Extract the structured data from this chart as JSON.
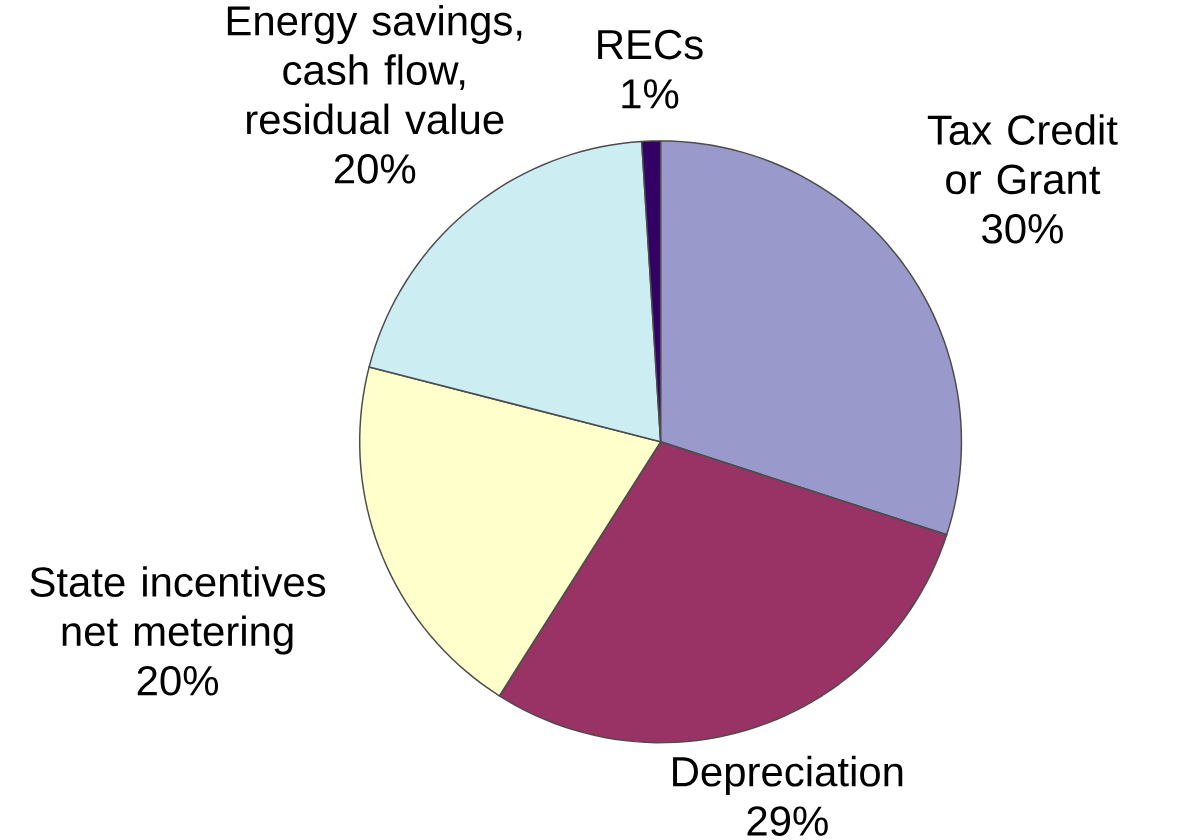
{
  "chart_data": {
    "type": "pie",
    "categories": [
      "Tax Credit or Grant",
      "Depreciation",
      "State incentives net metering",
      "Energy savings, cash flow, residual value",
      "RECs"
    ],
    "values": [
      30,
      29,
      20,
      20,
      1
    ],
    "value_labels": [
      "30%",
      "29%",
      "20%",
      "20%",
      "1%"
    ],
    "colors": [
      "#9999cc",
      "#993366",
      "#ffffcc",
      "#cceef2",
      "#330066"
    ]
  }
}
